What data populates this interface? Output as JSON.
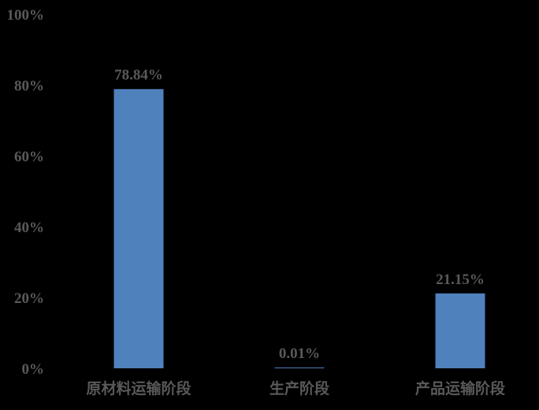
{
  "chart_data": {
    "type": "bar",
    "categories": [
      "原材料运输阶段",
      "生产阶段",
      "产品运输阶段"
    ],
    "values": [
      78.84,
      0.01,
      21.15
    ],
    "data_labels": [
      "78.84%",
      "0.01%",
      "21.15%"
    ],
    "yticks": [
      "0%",
      "20%",
      "40%",
      "60%",
      "80%",
      "100%"
    ],
    "ylim": [
      0,
      100
    ],
    "title": "",
    "xlabel": "",
    "ylabel": "",
    "grid": false,
    "legend": "none",
    "colors": {
      "bar": "#4F81BD",
      "text": "#595959",
      "background": "#000000"
    }
  }
}
